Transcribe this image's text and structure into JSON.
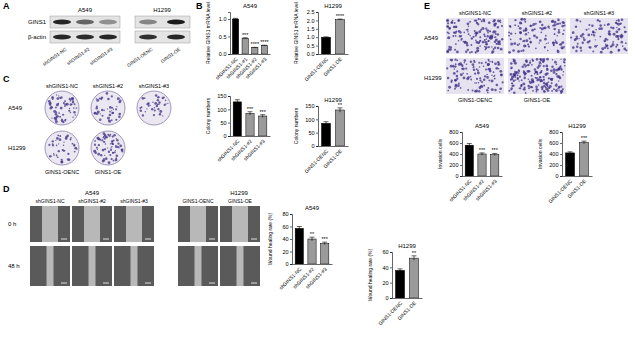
{
  "chart_data": [
    {
      "type": "bar",
      "title": "A549",
      "y_label": "Relative GINS1 mRNA level",
      "categories": [
        "shGINS1-NC",
        "shGINS1-#1",
        "shGINS1-#2",
        "shGINS1-#3"
      ],
      "values": [
        1,
        0.45,
        0.18,
        0.24
      ],
      "errors": [
        0.02,
        0.015,
        0.01,
        0.01
      ],
      "annotations": [
        null,
        "***",
        "****",
        "****"
      ],
      "colors": [
        "#000000",
        "#9a9a9a",
        "#9a9a9a",
        "#9a9a9a"
      ],
      "ylim": [
        0,
        1.2
      ],
      "yticks": [
        {
          "value": 0,
          "label": "0.0"
        },
        {
          "value": 0.5,
          "label": "0.5"
        },
        {
          "value": 1,
          "label": "1.0"
        }
      ]
    },
    {
      "type": "bar",
      "title": "H1299",
      "y_label": "Relative GINS1 mRNA level",
      "categories": [
        "GINS1-OENC",
        "GINS1-OE"
      ],
      "values": [
        1,
        2.05
      ],
      "errors": [
        0.02,
        0.03
      ],
      "annotations": [
        null,
        "****"
      ],
      "colors": [
        "#000000",
        "#9a9a9a"
      ],
      "ylim": [
        0,
        2.5
      ],
      "yticks": [
        {
          "value": 0,
          "label": "0.0"
        },
        {
          "value": 0.5,
          "label": "0.5"
        },
        {
          "value": 1,
          "label": "1.0"
        },
        {
          "value": 1.5,
          "label": "1.5"
        },
        {
          "value": 2,
          "label": "2.0"
        },
        {
          "value": 2.5,
          "label": "2.5"
        }
      ]
    },
    {
      "type": "bar",
      "y_label": "Colony numbers",
      "categories": [
        "shGINS1-NC",
        "shGINS1-#2",
        "shGINS1-#3"
      ],
      "values": [
        128,
        85,
        75
      ],
      "errors": [
        8,
        6,
        5
      ],
      "annotations": [
        null,
        "***",
        "***"
      ],
      "colors": [
        "#000000",
        "#9a9a9a",
        "#9a9a9a"
      ],
      "ylim": [
        0,
        150
      ],
      "yticks": [
        0,
        50,
        100,
        150
      ]
    },
    {
      "type": "bar",
      "title": "H1299",
      "y_label": "Colony numbers",
      "categories": [
        "GINS1-OENC",
        "GINS1-OE"
      ],
      "values": [
        85,
        135
      ],
      "errors": [
        6,
        8
      ],
      "annotations": [
        null,
        "**"
      ],
      "colors": [
        "#000000",
        "#9a9a9a"
      ],
      "ylim": [
        0,
        150
      ],
      "yticks": [
        0,
        50,
        100,
        150
      ]
    },
    {
      "type": "bar",
      "title": "A549",
      "y_label": "Wound healing rate (%)",
      "categories": [
        "shGINS1-NC",
        "shGINS1-#2",
        "shGINS1-#3"
      ],
      "values": [
        57,
        40,
        33
      ],
      "errors": [
        3,
        3,
        2
      ],
      "annotations": [
        null,
        "**",
        "***"
      ],
      "colors": [
        "#000000",
        "#9a9a9a",
        "#9a9a9a"
      ],
      "ylim": [
        0,
        80
      ],
      "yticks": [
        0,
        20,
        40,
        60,
        80
      ]
    },
    {
      "type": "bar",
      "title": "H1299",
      "y_label": "Wound healing rate (%)",
      "categories": [
        "GINS1-OENC",
        "GINS1-OE"
      ],
      "values": [
        36,
        52
      ],
      "errors": [
        2,
        3
      ],
      "annotations": [
        null,
        "**"
      ],
      "colors": [
        "#000000",
        "#9a9a9a"
      ],
      "ylim": [
        0,
        60
      ],
      "yticks": [
        0,
        20,
        40,
        60
      ]
    },
    {
      "type": "bar",
      "title": "A549",
      "y_label": "Invasion cells",
      "categories": [
        "shGINS1-NC",
        "shGINS1-#2",
        "shGINS1-#3"
      ],
      "values": [
        560,
        400,
        390
      ],
      "errors": [
        30,
        20,
        20
      ],
      "annotations": [
        null,
        "***",
        "***"
      ],
      "colors": [
        "#000000",
        "#9a9a9a",
        "#9a9a9a"
      ],
      "ylim": [
        0,
        800
      ],
      "yticks": [
        0,
        200,
        400,
        600,
        800
      ]
    },
    {
      "type": "bar",
      "title": "H1299",
      "y_label": "Invasion cells",
      "categories": [
        "GINS1-OENC",
        "GINS1-OE"
      ],
      "values": [
        420,
        610
      ],
      "errors": [
        20,
        25
      ],
      "annotations": [
        null,
        "***"
      ],
      "colors": [
        "#000000",
        "#9a9a9a"
      ],
      "ylim": [
        0,
        800
      ],
      "yticks": [
        0,
        200,
        400,
        600,
        800
      ]
    }
  ],
  "panels": {
    "letters": [
      "A",
      "B",
      "C",
      "D",
      "E"
    ],
    "blot": {
      "cell_lines": [
        "A549",
        "H1299"
      ],
      "rows": [
        "GINS1",
        "β-actin"
      ],
      "lanes": [
        "shGINS1-NC",
        "shGINS1-#2",
        "shGINS1-#3",
        "GINS1-OENC",
        "GINS1-OE"
      ]
    },
    "colony": {
      "rows": [
        "A549",
        "H1299"
      ],
      "top_labels": [
        "shGINS1-NC",
        "shGINS1-#2",
        "shGINS1-#3"
      ],
      "bottom_labels": [
        "GINS1-OENC",
        "GINS1-OE"
      ]
    },
    "wound": {
      "cell_lines": [
        "A549",
        "H1299"
      ],
      "times": [
        "0 h",
        "48 h"
      ],
      "a549_labels": [
        "shGINS1-NC",
        "shGINS1-#2",
        "shGINS1-#3"
      ],
      "h1299_labels": [
        "GINS1-OENC",
        "GINS1-OE"
      ]
    },
    "invasion": {
      "rows": [
        "A549",
        "H1299"
      ],
      "top_labels": [
        "shGINS1-NC",
        "shGINS1-#2",
        "shGINS1-#3"
      ],
      "bottom_labels": [
        "GINS1-OENC",
        "GINS1-OE"
      ]
    }
  }
}
